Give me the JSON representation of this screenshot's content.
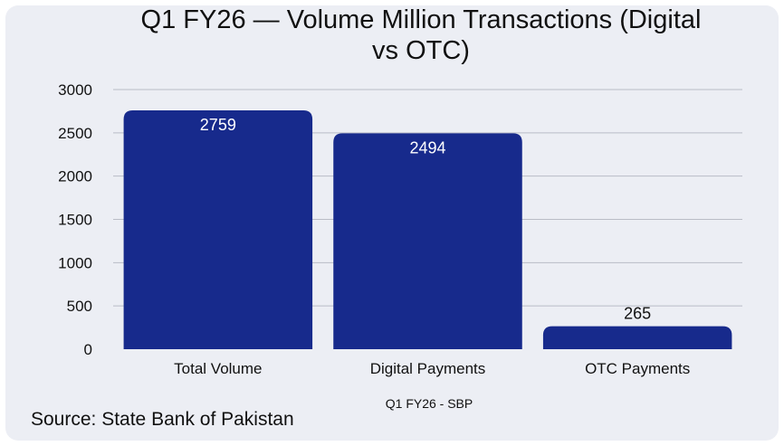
{
  "chart_data": {
    "type": "bar",
    "title_lines": [
      "Q1 FY26 — Volume Million Transactions (Digital",
      "vs OTC)"
    ],
    "categories": [
      "Total Volume",
      "Digital Payments",
      "OTC Payments"
    ],
    "values": [
      2759,
      2494,
      265
    ],
    "data_labels": [
      "2759",
      "2494",
      "265"
    ],
    "xlabel": "Q1 FY26 - SBP",
    "ylabel": "",
    "ylim": [
      0,
      3000
    ],
    "yticks": [
      "0",
      "500",
      "1000",
      "1500",
      "2000",
      "2500",
      "3000"
    ],
    "grid": true,
    "bar_color": "#172a8c",
    "grid_color": "#b9bcc6"
  },
  "source_text": "Source: State Bank of Pakistan"
}
